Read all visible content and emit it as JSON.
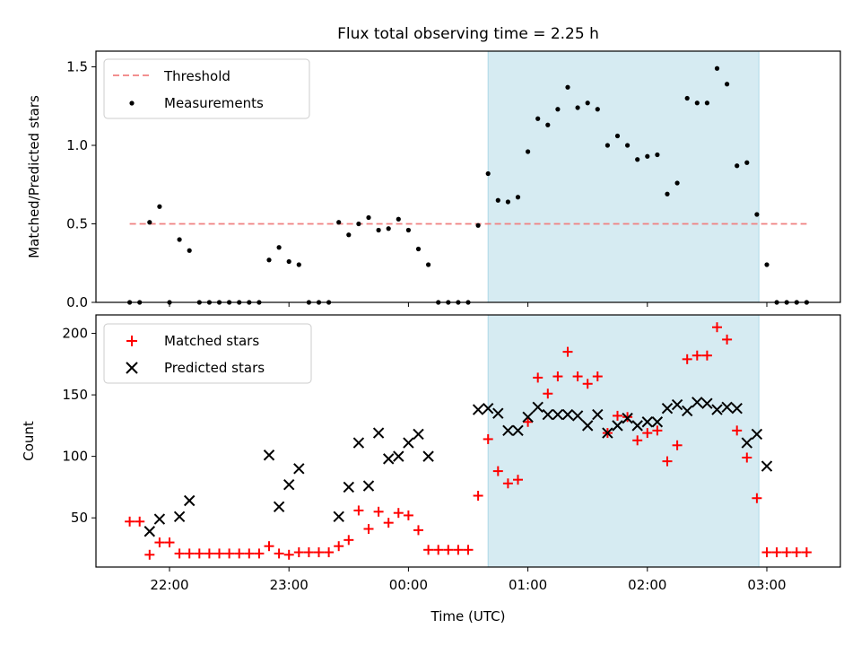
{
  "figure": {
    "title": "Flux total observing time = 2.25 h",
    "xlabel": "Time (UTC)",
    "x_ticks": [
      "22:00",
      "23:00",
      "00:00",
      "01:00",
      "02:00",
      "03:00"
    ],
    "shaded_region": {
      "start": "00:40",
      "end": "02:56",
      "color": "#add8e6"
    }
  },
  "chart_data": [
    {
      "type": "scatter",
      "ylabel": "Matched/Predicted stars",
      "ylim": [
        0,
        1.6
      ],
      "yticks": [
        "0.0",
        "0.5",
        "1.0",
        "1.5"
      ],
      "legend_position": "top-left",
      "grid": false,
      "threshold": {
        "name": "Threshold",
        "value": 0.5,
        "color": "#f08080",
        "x_range": [
          "21:40",
          "03:20"
        ]
      },
      "series": [
        {
          "name": "Measurements",
          "color": "#000000",
          "x": [
            "21:40",
            "21:45",
            "21:50",
            "21:55",
            "22:00",
            "22:05",
            "22:10",
            "22:15",
            "22:20",
            "22:25",
            "22:30",
            "22:35",
            "22:40",
            "22:45",
            "22:50",
            "22:55",
            "23:00",
            "23:05",
            "23:10",
            "23:15",
            "23:20",
            "23:25",
            "23:30",
            "23:35",
            "23:40",
            "23:45",
            "23:50",
            "23:55",
            "00:00",
            "00:05",
            "00:10",
            "00:15",
            "00:20",
            "00:25",
            "00:30",
            "00:35",
            "00:40",
            "00:45",
            "00:50",
            "00:55",
            "01:00",
            "01:05",
            "01:10",
            "01:15",
            "01:20",
            "01:25",
            "01:30",
            "01:35",
            "01:40",
            "01:45",
            "01:50",
            "01:55",
            "02:00",
            "02:05",
            "02:10",
            "02:15",
            "02:20",
            "02:25",
            "02:30",
            "02:35",
            "02:40",
            "02:45",
            "02:50",
            "02:55",
            "03:00",
            "03:05",
            "03:10",
            "03:15",
            "03:20"
          ],
          "y": [
            0,
            0,
            0.51,
            0.61,
            0,
            0.4,
            0.33,
            0,
            0,
            0,
            0,
            0,
            0,
            0,
            0.27,
            0.35,
            0.26,
            0.24,
            0,
            0,
            0,
            0.51,
            0.43,
            0.5,
            0.54,
            0.46,
            0.47,
            0.53,
            0.46,
            0.34,
            0.24,
            0,
            0,
            0,
            0,
            0.49,
            0.82,
            0.65,
            0.64,
            0.67,
            0.96,
            1.17,
            1.13,
            1.23,
            1.37,
            1.24,
            1.27,
            1.23,
            1.0,
            1.06,
            1.0,
            0.91,
            0.93,
            0.94,
            0.69,
            0.76,
            1.3,
            1.27,
            1.27,
            1.49,
            1.39,
            0.87,
            0.89,
            0.56,
            0.24,
            0,
            0,
            0,
            0
          ]
        }
      ]
    },
    {
      "type": "scatter",
      "ylabel": "Count",
      "ylim": [
        10,
        215
      ],
      "yticks": [
        "50",
        "100",
        "150",
        "200"
      ],
      "legend_position": "top-left",
      "grid": false,
      "x": [
        "21:40",
        "21:45",
        "21:50",
        "21:55",
        "22:00",
        "22:05",
        "22:10",
        "22:15",
        "22:20",
        "22:25",
        "22:30",
        "22:35",
        "22:40",
        "22:45",
        "22:50",
        "22:55",
        "23:00",
        "23:05",
        "23:10",
        "23:15",
        "23:20",
        "23:25",
        "23:30",
        "23:35",
        "23:40",
        "23:45",
        "23:50",
        "23:55",
        "00:00",
        "00:05",
        "00:10",
        "00:15",
        "00:20",
        "00:25",
        "00:30",
        "00:35",
        "00:40",
        "00:45",
        "00:50",
        "00:55",
        "01:00",
        "01:05",
        "01:10",
        "01:15",
        "01:20",
        "01:25",
        "01:30",
        "01:35",
        "01:40",
        "01:45",
        "01:50",
        "01:55",
        "02:00",
        "02:05",
        "02:10",
        "02:15",
        "02:20",
        "02:25",
        "02:30",
        "02:35",
        "02:40",
        "02:45",
        "02:50",
        "02:55",
        "03:00",
        "03:05",
        "03:10",
        "03:15",
        "03:20"
      ],
      "series": [
        {
          "name": "Matched stars",
          "marker": "plus",
          "color": "#ff0000",
          "y": [
            47,
            47,
            20,
            30,
            30,
            21,
            21,
            21,
            21,
            21,
            21,
            21,
            21,
            21,
            27,
            21,
            20,
            22,
            22,
            22,
            22,
            27,
            32,
            56,
            41,
            55,
            46,
            54,
            52,
            40,
            24,
            24,
            24,
            24,
            24,
            68,
            114,
            88,
            78,
            81,
            128,
            164,
            151,
            165,
            185,
            165,
            159,
            165,
            119,
            133,
            132,
            113,
            119,
            121,
            96,
            109,
            179,
            182,
            182,
            205,
            195,
            121,
            99,
            66,
            22,
            22,
            22,
            22,
            22
          ]
        },
        {
          "name": "Predicted stars",
          "marker": "x",
          "color": "#000000",
          "y": [
            null,
            null,
            39,
            49,
            null,
            51,
            64,
            null,
            null,
            null,
            null,
            null,
            null,
            null,
            101,
            59,
            77,
            90,
            null,
            null,
            null,
            51,
            75,
            111,
            76,
            119,
            98,
            100,
            111,
            118,
            100,
            null,
            null,
            null,
            null,
            138,
            139,
            135,
            121,
            121,
            132,
            140,
            134,
            134,
            134,
            133,
            125,
            134,
            119,
            125,
            131,
            125,
            128,
            128,
            139,
            142,
            137,
            144,
            143,
            138,
            140,
            139,
            111,
            118,
            92,
            null,
            null,
            null,
            null
          ]
        }
      ]
    }
  ]
}
